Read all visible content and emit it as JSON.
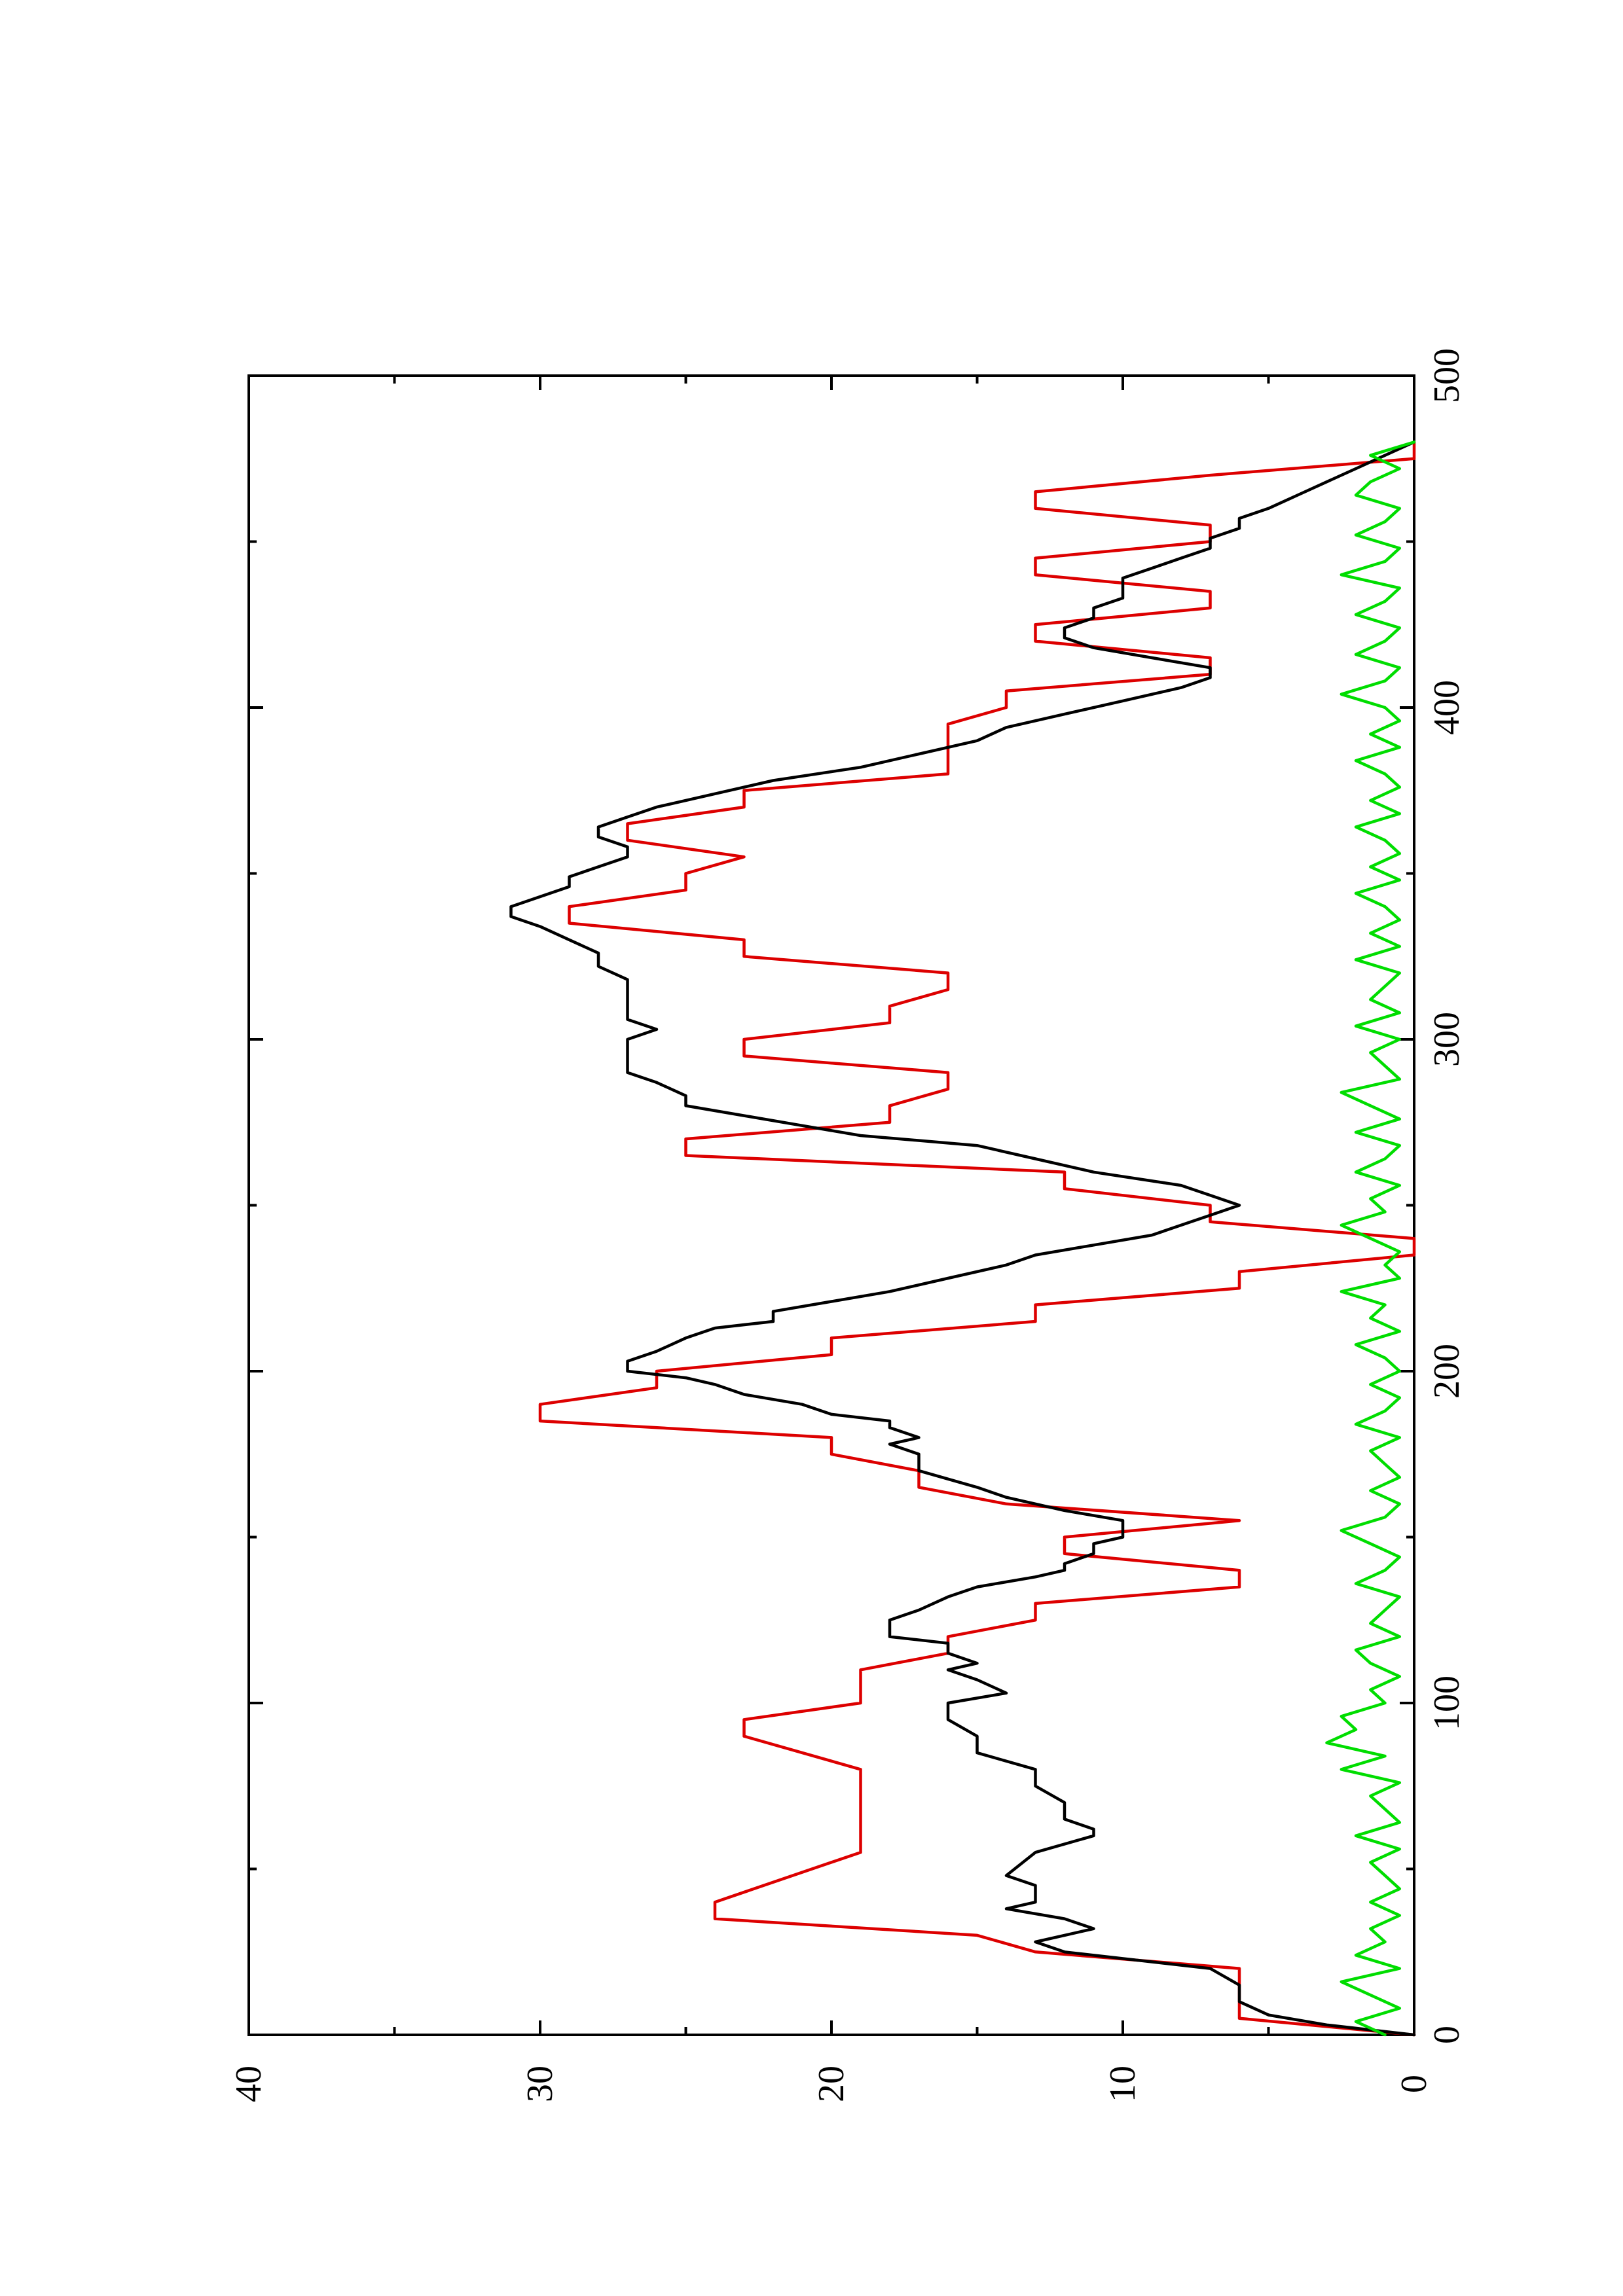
{
  "chart_data": {
    "type": "line",
    "orientation": "rotated 90 degrees counter-clockwise (x axis runs vertically, y axis horizontally)",
    "title": "",
    "xlabel": "",
    "ylabel": "",
    "xlim": [
      0,
      500
    ],
    "ylim": [
      0,
      40
    ],
    "x_major_ticks": [
      0,
      100,
      200,
      300,
      400,
      500
    ],
    "x_minor_ticks": [
      50,
      150,
      250,
      350,
      450
    ],
    "y_major_ticks": [
      0,
      10,
      20,
      30,
      40
    ],
    "y_minor_ticks": [
      5,
      15,
      25,
      35
    ],
    "x_tick_labels": [
      "0",
      "100",
      "200",
      "300",
      "400",
      "500"
    ],
    "y_tick_labels": [
      "0",
      "10",
      "20",
      "30",
      "40"
    ],
    "grid": false,
    "legend": "none",
    "series": [
      {
        "color": "#dd0000",
        "style": "step",
        "x": [
          0,
          5,
          20,
          25,
          30,
          35,
          40,
          55,
          60,
          70,
          80,
          90,
          95,
          100,
          110,
          115,
          120,
          125,
          130,
          135,
          140,
          145,
          150,
          155,
          160,
          165,
          170,
          175,
          180,
          185,
          190,
          195,
          200,
          205,
          210,
          215,
          220,
          225,
          230,
          235,
          240,
          245,
          250,
          255,
          260,
          265,
          270,
          275,
          280,
          285,
          290,
          295,
          300,
          305,
          310,
          315,
          320,
          325,
          330,
          335,
          340,
          345,
          350,
          355,
          360,
          365,
          370,
          375,
          380,
          385,
          390,
          395,
          400,
          405,
          410,
          415,
          420,
          425,
          430,
          435,
          440,
          445,
          450,
          455,
          460,
          465,
          470,
          475,
          480
        ],
        "y": [
          0,
          6,
          6,
          13,
          15,
          24,
          24,
          19,
          19,
          19,
          19,
          23,
          23,
          19,
          19,
          16,
          16,
          13,
          13,
          6,
          6,
          12,
          12,
          6,
          14,
          17,
          17,
          20,
          20,
          30,
          30,
          26,
          26,
          20,
          20,
          13,
          13,
          6,
          6,
          0,
          0,
          7,
          7,
          12,
          12,
          25,
          25,
          18,
          18,
          16,
          16,
          23,
          23,
          18,
          18,
          16,
          16,
          23,
          23,
          29,
          29,
          25,
          25,
          23,
          27,
          27,
          23,
          23,
          16,
          16,
          16,
          16,
          14,
          14,
          7,
          7,
          13,
          13,
          7,
          7,
          13,
          13,
          7,
          7,
          13,
          13,
          7,
          0,
          0
        ]
      },
      {
        "color": "#000000",
        "style": "line",
        "x": [
          0,
          3,
          6,
          10,
          15,
          20,
          22,
          25,
          28,
          30,
          32,
          35,
          38,
          40,
          42,
          45,
          48,
          55,
          60,
          62,
          65,
          70,
          75,
          80,
          85,
          90,
          95,
          100,
          103,
          107,
          110,
          112,
          115,
          118,
          120,
          122,
          125,
          128,
          132,
          135,
          138,
          140,
          142,
          145,
          148,
          150,
          152,
          155,
          158,
          162,
          165,
          170,
          173,
          175,
          178,
          180,
          183,
          185,
          187,
          190,
          193,
          196,
          198,
          200,
          203,
          206,
          210,
          213,
          215,
          218,
          221,
          224,
          228,
          232,
          235,
          238,
          241,
          244,
          247,
          250,
          253,
          256,
          260,
          264,
          268,
          271,
          274,
          277,
          280,
          283,
          287,
          290,
          293,
          296,
          300,
          303,
          306,
          310,
          314,
          318,
          322,
          326,
          330,
          334,
          337,
          340,
          343,
          346,
          349,
          352,
          355,
          358,
          361,
          364,
          367,
          370,
          374,
          378,
          382,
          386,
          390,
          394,
          398,
          402,
          406,
          409,
          412,
          415,
          418,
          421,
          424,
          427,
          430,
          433,
          436,
          439,
          442,
          445,
          448,
          451,
          454,
          457,
          460,
          464,
          468,
          472,
          476,
          480
        ],
        "y": [
          0,
          3,
          5,
          6,
          6,
          7,
          9,
          12,
          13,
          12,
          11,
          12,
          14,
          13,
          13,
          13,
          14,
          13,
          11,
          11,
          12,
          12,
          13,
          13,
          15,
          15,
          16,
          16,
          14,
          15,
          16,
          15,
          16,
          16,
          18,
          18,
          18,
          17,
          16,
          15,
          13,
          12,
          12,
          11,
          11,
          10,
          10,
          10,
          12,
          14,
          15,
          17,
          17,
          17,
          18,
          17,
          18,
          18,
          20,
          21,
          23,
          24,
          25,
          27,
          27,
          26,
          25,
          24,
          22,
          22,
          20,
          18,
          16,
          14,
          13,
          11,
          9,
          8,
          7,
          6,
          7,
          8,
          11,
          13,
          15,
          19,
          21,
          23,
          25,
          25,
          26,
          27,
          27,
          27,
          27,
          26,
          27,
          27,
          27,
          27,
          28,
          28,
          29,
          30,
          31,
          31,
          30,
          29,
          29,
          28,
          27,
          27,
          28,
          28,
          27,
          26,
          24,
          22,
          19,
          17,
          15,
          14,
          12,
          10,
          8,
          7,
          7,
          9,
          11,
          12,
          12,
          11,
          11,
          10,
          10,
          10,
          9,
          8,
          7,
          7,
          6,
          6,
          5,
          4,
          3,
          2,
          1,
          0
        ]
      },
      {
        "color": "#00dd00",
        "style": "line",
        "x": [
          0,
          4,
          8,
          12,
          16,
          20,
          24,
          28,
          32,
          36,
          40,
          44,
          48,
          52,
          56,
          60,
          64,
          68,
          72,
          76,
          80,
          84,
          88,
          92,
          96,
          100,
          104,
          108,
          112,
          116,
          120,
          124,
          128,
          132,
          136,
          140,
          144,
          148,
          152,
          156,
          160,
          164,
          168,
          172,
          176,
          180,
          184,
          188,
          192,
          196,
          200,
          204,
          208,
          212,
          216,
          220,
          224,
          228,
          232,
          236,
          240,
          244,
          248,
          252,
          256,
          260,
          264,
          268,
          272,
          276,
          280,
          284,
          288,
          292,
          296,
          300,
          304,
          308,
          312,
          316,
          320,
          324,
          328,
          332,
          336,
          340,
          344,
          348,
          352,
          356,
          360,
          364,
          368,
          372,
          376,
          380,
          384,
          388,
          392,
          396,
          400,
          404,
          408,
          412,
          416,
          420,
          424,
          428,
          432,
          436,
          440,
          444,
          448,
          452,
          456,
          460,
          464,
          468,
          472,
          476,
          480
        ],
        "y": [
          1,
          2,
          0.5,
          1.5,
          2.5,
          0.5,
          2,
          1,
          1.5,
          0.5,
          1.5,
          0.5,
          1,
          1.5,
          0.5,
          2,
          0.5,
          1,
          1.5,
          0.5,
          2.5,
          1,
          3,
          2,
          2.5,
          1,
          1.5,
          0.5,
          1.5,
          2,
          0.5,
          1.5,
          1,
          0.5,
          2,
          1,
          0.5,
          1.5,
          2.5,
          1,
          0.5,
          1.5,
          0.5,
          1,
          1.5,
          0.5,
          2,
          1,
          0.5,
          1.5,
          0.5,
          1,
          2,
          0.5,
          1.5,
          1,
          2.5,
          0.5,
          1,
          0.5,
          1.5,
          2.5,
          1,
          1.5,
          0.5,
          2,
          1,
          0.5,
          2,
          0.5,
          1.5,
          2.5,
          0.5,
          1,
          1.5,
          0.5,
          2,
          0.5,
          1.5,
          1,
          0.5,
          2,
          0.5,
          1.5,
          0.5,
          1,
          2,
          0.5,
          1.5,
          0.5,
          1,
          2,
          0.5,
          1.5,
          0.5,
          1,
          2,
          0.5,
          1.5,
          0.5,
          1,
          2.5,
          1,
          0.5,
          2,
          1,
          0.5,
          2,
          1,
          0.5,
          2.5,
          1,
          0.5,
          2,
          1,
          0.5,
          2,
          1.5,
          0.5,
          1.5,
          0
        ]
      }
    ]
  }
}
